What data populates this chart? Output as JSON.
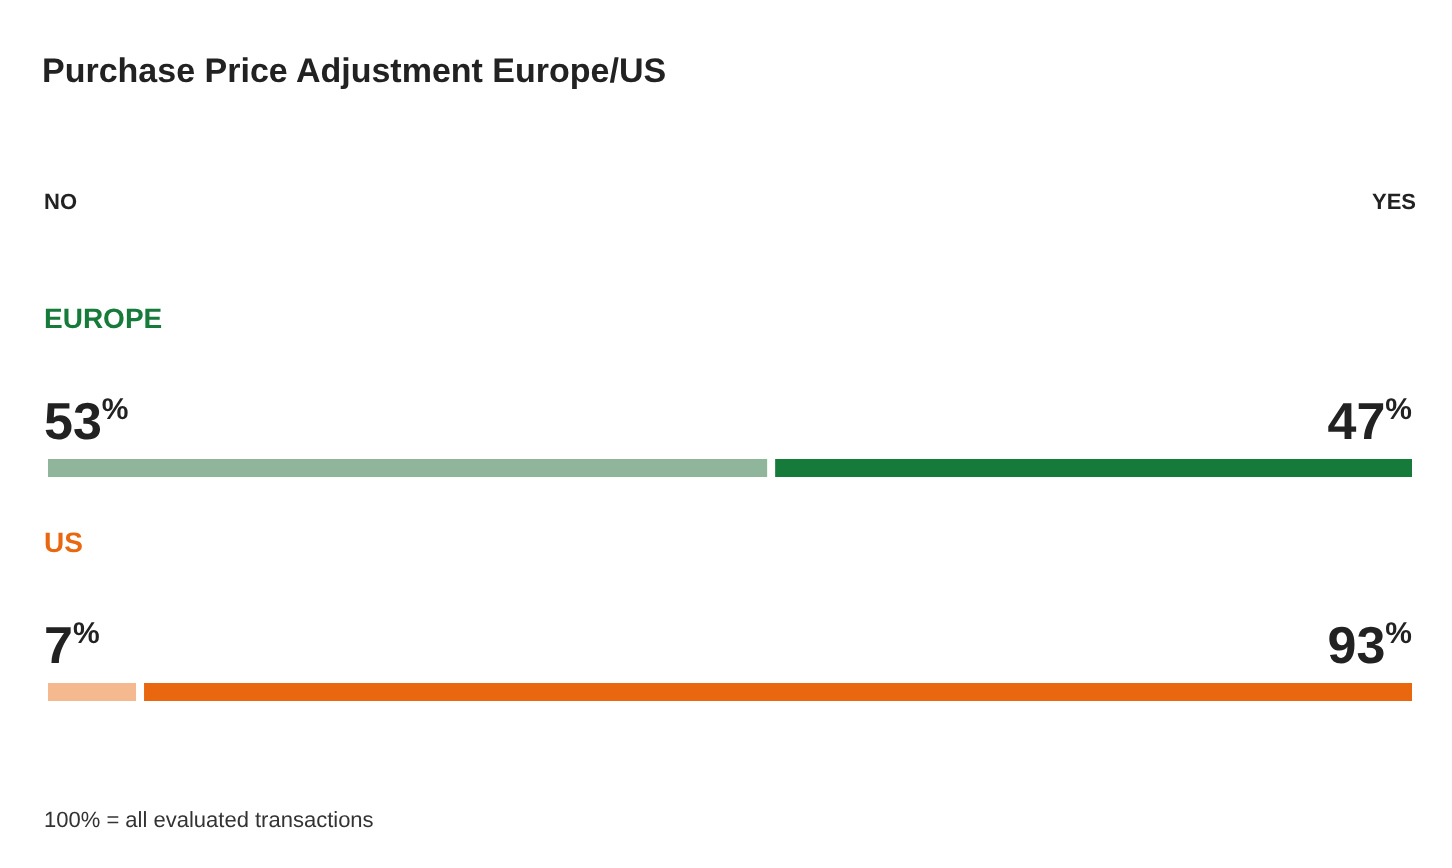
{
  "chart_data": {
    "type": "bar",
    "orientation": "horizontal",
    "stacked": true,
    "title": "Purchase Price Adjustment Europe/US",
    "categories": [
      "EUROPE",
      "US"
    ],
    "series": [
      {
        "colors": [
          "#8fb59b",
          "#f4b98f"
        ],
        "values": [
          53,
          7
        ],
        "value_labels": [
          "53$^{%}$",
          "7$^{%}$"
        ]
      },
      {
        "colors": [
          "#167a3a",
          "#e9670f"
        ],
        "values": [
          47,
          93
        ],
        "value_labels": [
          "47$^{%}$",
          "93$^{%}$"
        ]
      }
    ],
    "xlim": [
      0,
      100
    ],
    "tick_labels": false,
    "annotations": [
      "NO",
      "YES",
      "100% = all evaluated transactions"
    ]
  }
}
